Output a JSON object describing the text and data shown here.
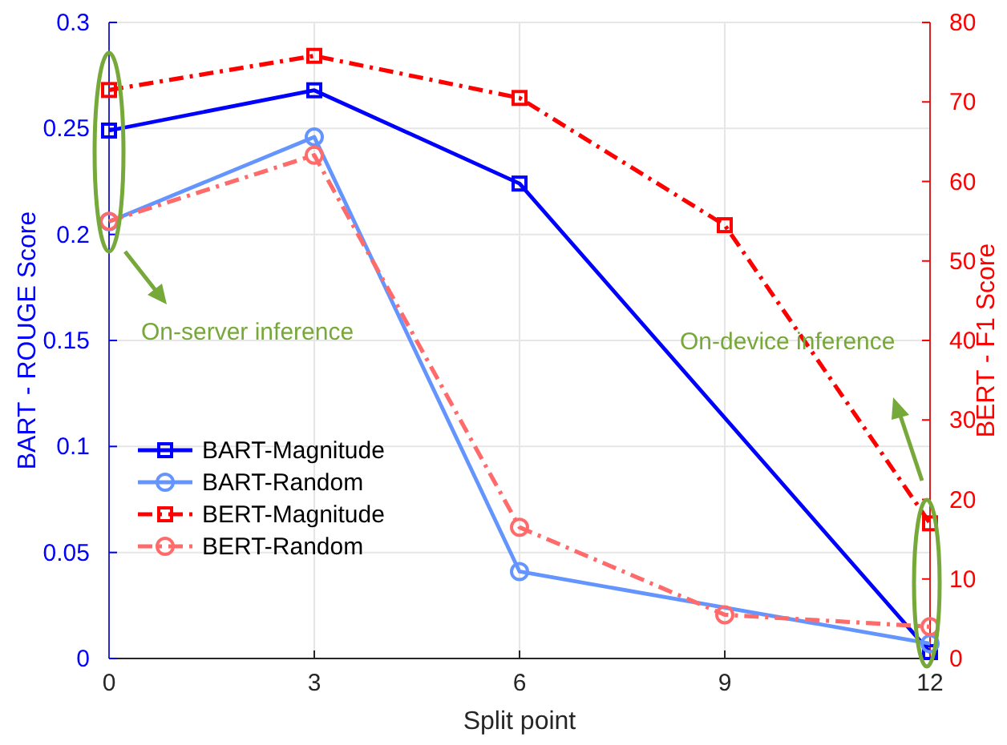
{
  "chart_data": {
    "type": "line",
    "xlabel": "Split point",
    "ylabel": "BART - ROUGE Score",
    "y2label": "BERT - F1 Score",
    "xlim": [
      0,
      12
    ],
    "xticks": [
      0,
      3,
      6,
      9,
      12
    ],
    "ylim": [
      0,
      0.3
    ],
    "yticks": [
      0,
      0.05,
      0.1,
      0.15,
      0.2,
      0.25,
      0.3
    ],
    "y2lim": [
      0,
      80
    ],
    "y2ticks": [
      0,
      10,
      20,
      30,
      40,
      50,
      60,
      70,
      80
    ],
    "grid": true,
    "legend": "bottom left",
    "series": [
      {
        "name": "BART-Magnitude",
        "color": "#0000ff",
        "x": [
          0,
          3,
          6,
          12
        ],
        "values": [
          0.249,
          0.268,
          0.224,
          0.003
        ],
        "marker": "square",
        "line_style": "solid"
      },
      {
        "name": "BART-Random",
        "color": "#6495ff",
        "x": [
          0,
          3,
          6,
          12
        ],
        "values": [
          0.206,
          0.246,
          0.041,
          0.007
        ],
        "marker": "circle",
        "line_style": "solid"
      },
      {
        "name": "BERT-Magnitude",
        "color": "#ff0000",
        "axis": "y2",
        "x": [
          0,
          3,
          6,
          9,
          12
        ],
        "values": [
          71.5,
          75.8,
          70.5,
          54.5,
          17
        ],
        "marker": "square",
        "line_style": "dashdot"
      },
      {
        "name": "BERT-Random",
        "color": "#ff6b6b",
        "axis": "y2",
        "x": [
          0,
          3,
          6,
          9,
          12
        ],
        "values": [
          55,
          63.3,
          16.5,
          5.5,
          4
        ],
        "marker": "circle",
        "line_style": "dashdot"
      }
    ],
    "annotations": [
      "On-server inference",
      "On-device inference"
    ]
  }
}
